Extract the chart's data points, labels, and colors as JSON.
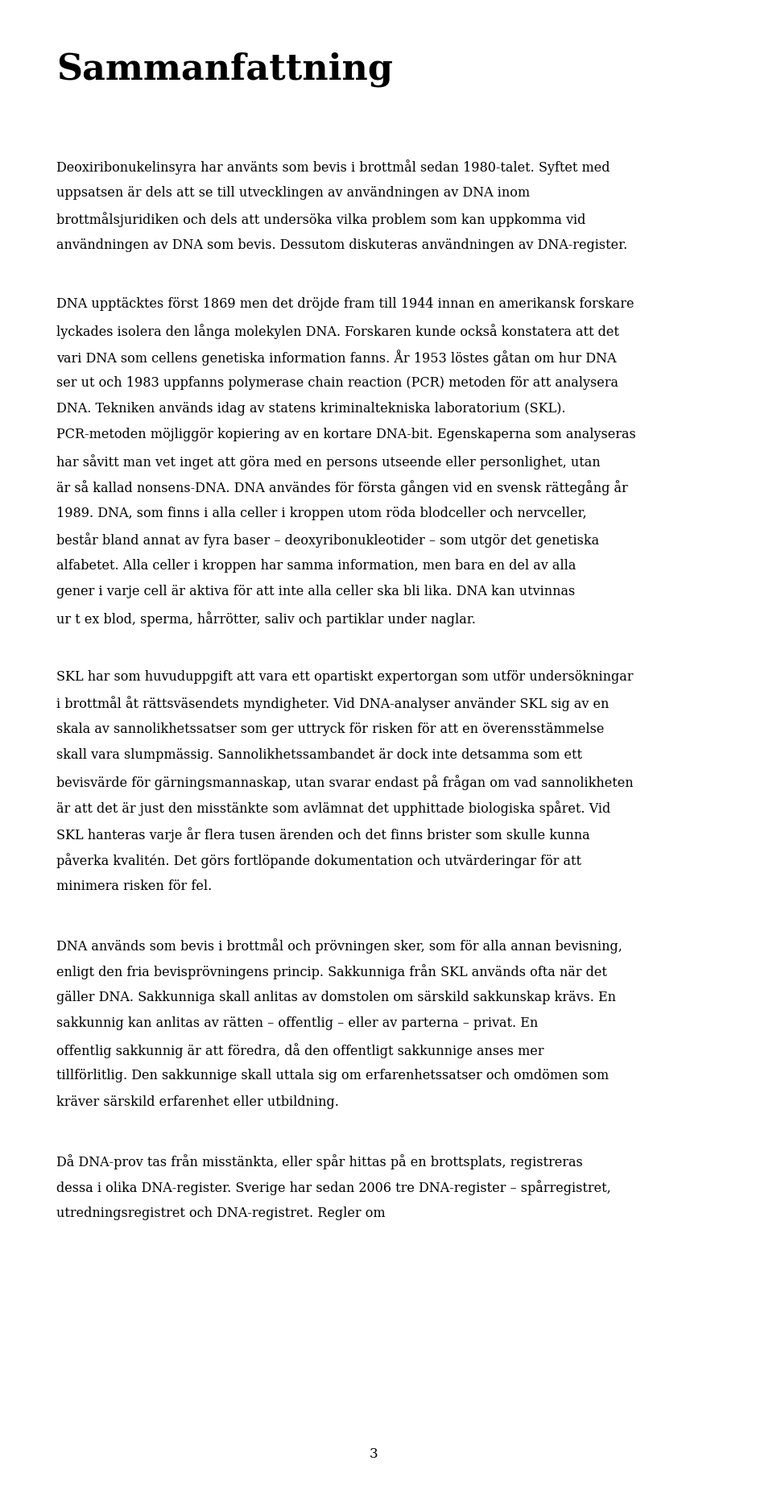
{
  "title": "Sammanfattning",
  "background_color": "#ffffff",
  "text_color": "#000000",
  "page_number": "3",
  "paragraphs": [
    "Deoxiribonukelinsyra har använts som bevis i brottmål sedan 1980-talet. Syftet med uppsatsen är dels att se till utvecklingen av användningen av DNA inom brottmålsjuridiken och dels att undersöka vilka problem som kan uppkomma vid användningen av DNA som bevis. Dessutom diskuteras användningen av DNA-register.",
    "DNA upptäcktes först 1869 men det dröjde fram till 1944 innan en amerikansk forskare lyckades isolera den långa molekylen DNA. Forskaren kunde också konstatera att det vari DNA som cellens genetiska information fanns. År 1953 löstes gåtan om hur DNA ser ut och 1983 uppfanns polymerase chain reaction (PCR) metoden för att analysera DNA. Tekniken används idag av statens kriminaltekniska laboratorium (SKL). PCR-metoden möjliggör kopiering av en kortare DNA-bit. Egenskaperna som analyseras har såvitt man vet inget att göra med en persons utseende eller personlighet, utan är så kallad nonsens-DNA. DNA användes för första gången vid en svensk rättegång år 1989. DNA, som finns i alla celler i kroppen utom röda blodceller och nervceller, består bland annat av fyra baser – deoxyribonukleotider – som utgör det genetiska alfabetet. Alla celler i kroppen har samma information, men bara en del av alla gener i varje cell är aktiva för att inte alla celler ska bli lika. DNA kan utvinnas ur t ex blod, sperma, hårrötter, saliv och partiklar under naglar.",
    "SKL har som huvuduppgift att vara ett opartiskt expertorgan som utför undersökningar i brottmål åt rättsväsendets myndigheter. Vid DNA-analyser använder SKL sig av en skala av sannolikhetssatser som ger uttryck för risken för att en överensstämmelse skall vara slumpmässig. Sannolikhetssambandet är dock inte detsamma som ett bevisvärde för gärningsmannaskap, utan svarar endast på frågan om vad sannolikheten är att det är just den misstänkte som avlämnat det upphittade biologiska spåret. Vid SKL hanteras varje år flera tusen ärenden och det finns brister som skulle kunna påverka kvalitén. Det görs fortlöpande dokumentation och utvärderingar för att minimera risken för fel.",
    "DNA används som bevis i brottmål och prövningen sker, som för alla annan bevisning, enligt den fria bevisprövningens princip. Sakkunniga från SKL används ofta när det gäller DNA. Sakkunniga skall anlitas av domstolen om särskild sakkunskap krävs. En sakkunnig kan anlitas av rätten – offentlig – eller av parterna – privat. En offentlig sakkunnig är att föredra, då den offentligt sakkunnige anses mer tillförlitlig. Den sakkunnige skall uttala sig om erfarenhetssatser och omdömen som kräver särskild erfarenhet eller utbildning.",
    "Då DNA-prov tas från misstänkta, eller spår hittas på en brottsplats, registreras dessa i olika DNA-register. Sverige har sedan 2006 tre DNA-register – spårregistret, utredningsregistret och DNA-registret. Regler om"
  ]
}
